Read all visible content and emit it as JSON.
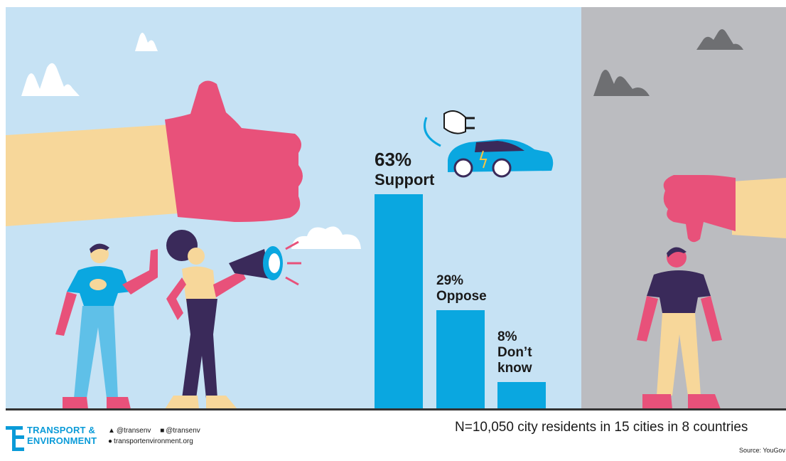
{
  "chart_data": {
    "type": "bar",
    "categories": [
      "Support",
      "Oppose",
      "Don’t know"
    ],
    "values": [
      63,
      29,
      8
    ],
    "value_labels": [
      "63%",
      "29%",
      "8%"
    ],
    "category_labels": [
      [
        "Support"
      ],
      [
        "Oppose"
      ],
      [
        "Don’t",
        "know"
      ]
    ],
    "unit": "%",
    "ylim": [
      0,
      100
    ],
    "bar_color": "#0aa7e0",
    "grid": false
  },
  "footer": {
    "sample_note": "N=10,050 city residents in 15 cities in 8 countries",
    "source": "Source: YouGov",
    "logo_line1": "TRANSPORT &",
    "logo_line2": "ENVIRONMENT",
    "twitter": "@transenv",
    "facebook": "@transenv",
    "website": "transportenvironment.org"
  },
  "colors": {
    "left_panel": "#c6e2f4",
    "right_panel": "#bbbcc0",
    "hand": "#e8517a",
    "sleeve": "#f7d79a",
    "brand_blue": "#0a9bd8"
  }
}
